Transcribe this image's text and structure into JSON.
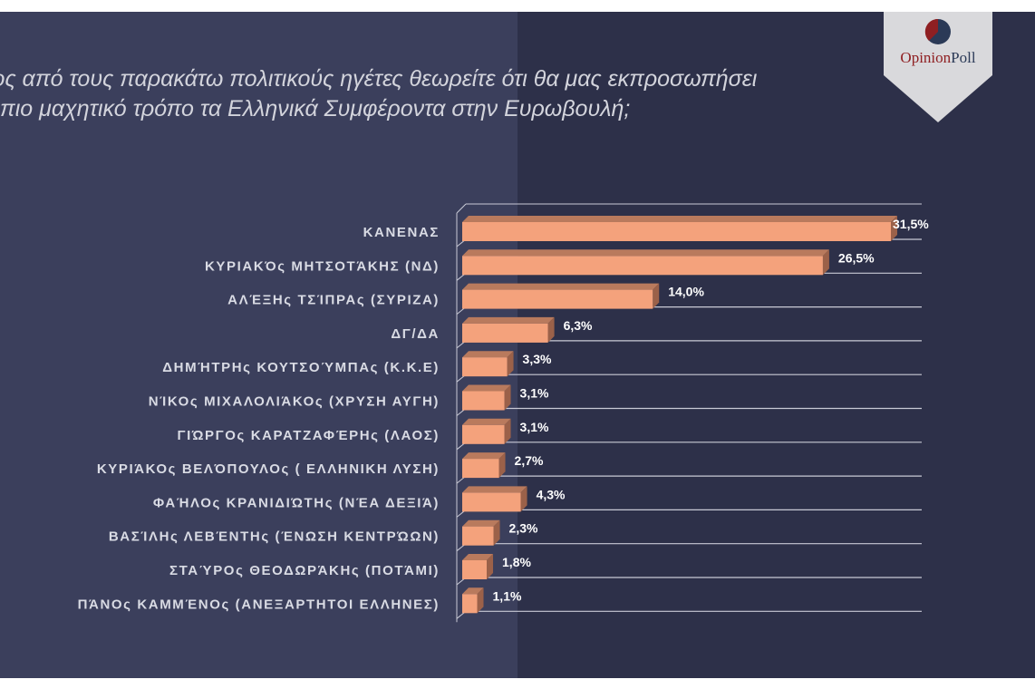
{
  "question": {
    "line1": "ιος από τους παρακάτω πολιτικούς ηγέτες  θεωρείτε ότι θα μας εκπροσωπήσει",
    "line2": "πιο μαχητικό τρόπο τα Ελληνικά Συμφέροντα στην Ευρωβουλή;"
  },
  "logo": {
    "word1": "Opinion",
    "word2": "Poll"
  },
  "colors": {
    "bar_front": "#f4a27c",
    "bar_top": "#b97a5d",
    "bar_side": "#9b6149",
    "logo_red": "#8f1f22",
    "logo_navy": "#2b3a57"
  },
  "chart_data": {
    "type": "bar",
    "orientation": "horizontal",
    "title": "ιος από τους παρακάτω πολιτικούς ηγέτες  θεωρείτε ότι θα μας εκπροσωπήσει πιο μαχητικό τρόπο τα Ελληνικά Συμφέροντα στην Ευρωβουλή;",
    "xlabel": "",
    "ylabel": "",
    "xlim": [
      0,
      31.5
    ],
    "categories": [
      "ΚΑΝΕΝΑΣ",
      "ΚΥΡΙΑΚΌς ΜΗΤΣΟΤΆΚΗΣ (ΝΔ)",
      "ΑΛΈΞΗς ΤΣΊΠΡΑς (ΣΥΡΙΖΑ)",
      "ΔΓ/ΔΑ",
      "ΔΗΜΉΤΡΗς ΚΟΥΤΣΟΎΜΠΑς (Κ.Κ.Ε)",
      "ΝΊΚΟς ΜΙΧΑΛΟΛΙΆΚΟς (ΧΡΥΣΗ ΑΥΓΗ)",
      "ΓΙΏΡΓΟς ΚΑΡΑΤΖΑΦΈΡΗς (ΛΑΟΣ)",
      "ΚΥΡΙΆΚΟς ΒΕΛΌΠΟΥΛΟς ( ΕΛΛΗΝΙΚΗ ΛΥΣΗ)",
      "ΦΑΉΛΟς ΚΡΑΝΙΔΙΏΤΗς (ΝΈΑ ΔΕΞΙΆ)",
      "ΒΑΣΊΛΗς ΛΕΒΈΝΤΗς (ΈΝΩΣΗ ΚΕΝΤΡΏΩΝ)",
      "ΣΤΑΎΡΟς ΘΕΟΔΩΡΆΚΗς (ΠΟΤΆΜΙ)",
      "ΠΆΝΟς ΚΑΜΜΈΝΟς (ΑΝΕΞΑΡΤΗΤΟΙ ΕΛΛΗΝΕΣ)"
    ],
    "values": [
      31.5,
      26.5,
      14.0,
      6.3,
      3.3,
      3.1,
      3.1,
      2.7,
      4.3,
      2.3,
      1.8,
      1.1
    ],
    "value_labels": [
      "31,5%",
      "26,5%",
      "14,0%",
      "6,3%",
      "3,3%",
      "3,1%",
      "3,1%",
      "2,7%",
      "4,3%",
      "2,3%",
      "1,8%",
      "1,1%"
    ],
    "grid": true,
    "legend": "none"
  }
}
